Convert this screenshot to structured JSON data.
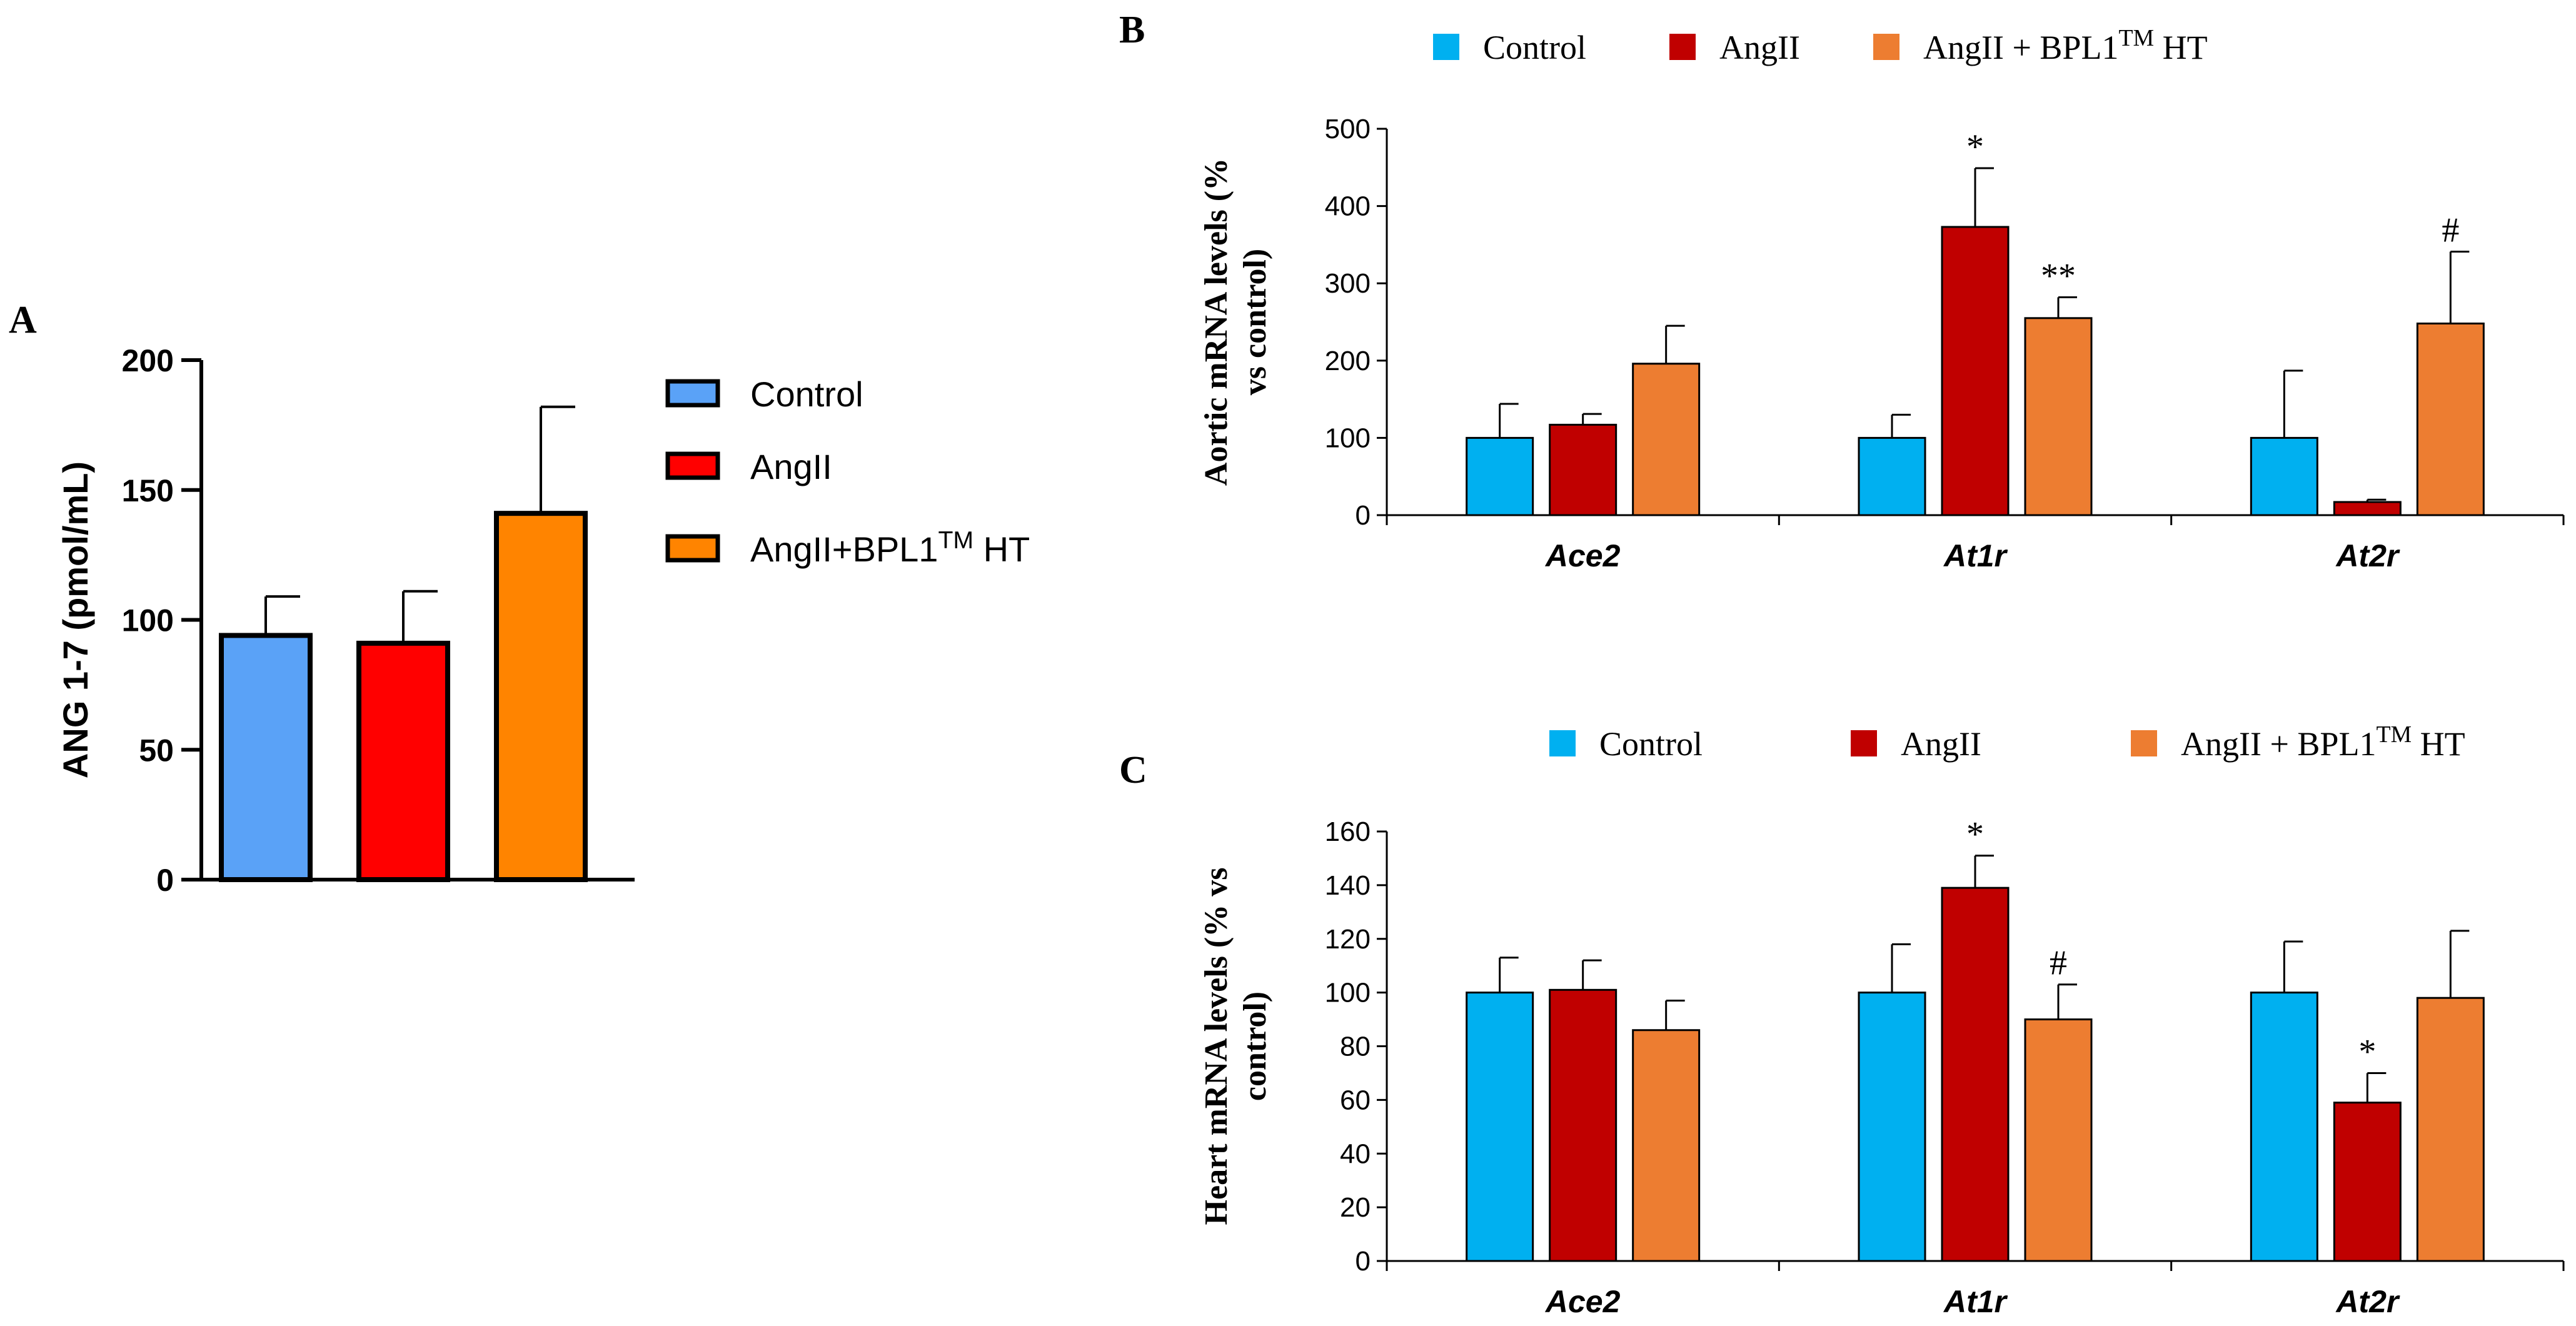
{
  "chart_data": [
    {
      "panel": "A",
      "type": "bar",
      "ylabel": "ANG 1-7 (pmol/mL)",
      "ylim": [
        0,
        200
      ],
      "yticks": [
        0,
        50,
        100,
        150,
        200
      ],
      "series": [
        {
          "name": "Control",
          "legend": "Control",
          "legend_sup": "",
          "legend_suffix": "",
          "value": 94,
          "error": 15,
          "color": "#5aa2f7"
        },
        {
          "name": "AngII",
          "legend": "AngII",
          "legend_sup": "",
          "legend_suffix": "",
          "value": 91,
          "error": 20,
          "color": "#ff0000"
        },
        {
          "name": "AngII+BPL1TM HT",
          "legend": "AngII+BPL1",
          "legend_sup": "TM",
          "legend_suffix": " HT",
          "value": 141,
          "error": 41,
          "color": "#ff8400"
        }
      ]
    },
    {
      "panel": "B",
      "type": "bar",
      "ylabel_lines": [
        "Aortic mRNA levels (%",
        "vs control)"
      ],
      "ylim": [
        0,
        500
      ],
      "yticks": [
        0,
        100,
        200,
        300,
        400,
        500
      ],
      "categories": [
        "Ace2",
        "At1r",
        "At2r"
      ],
      "legend": [
        {
          "label": "Control",
          "sup": "",
          "suffix": ""
        },
        {
          "label": "AngII",
          "sup": "",
          "suffix": ""
        },
        {
          "label": "AngII + BPL1",
          "sup": "TM",
          "suffix": " HT"
        }
      ],
      "series": [
        {
          "name": "Control",
          "color": "#00b0f0",
          "values": [
            100,
            100,
            100
          ],
          "errors": [
            44,
            30,
            87
          ],
          "annotations": [
            "",
            "",
            ""
          ]
        },
        {
          "name": "AngII",
          "color": "#c00000",
          "values": [
            117,
            373,
            17
          ],
          "errors": [
            14,
            76,
            3
          ],
          "annotations": [
            "",
            "*",
            ""
          ]
        },
        {
          "name": "AngII + BPL1TM HT",
          "color": "#ed7d31",
          "values": [
            196,
            255,
            248
          ],
          "errors": [
            49,
            27,
            93
          ],
          "annotations": [
            "",
            "**",
            "#"
          ]
        }
      ]
    },
    {
      "panel": "C",
      "type": "bar",
      "ylabel_lines": [
        "Heart mRNA levels (% vs",
        "control)"
      ],
      "ylim": [
        0,
        160
      ],
      "yticks": [
        0,
        20,
        40,
        60,
        80,
        100,
        120,
        140,
        160
      ],
      "categories": [
        "Ace2",
        "At1r",
        "At2r"
      ],
      "legend": [
        {
          "label": "Control",
          "sup": "",
          "suffix": ""
        },
        {
          "label": "AngII",
          "sup": "",
          "suffix": ""
        },
        {
          "label": "AngII + BPL1",
          "sup": "TM",
          "suffix": " HT"
        }
      ],
      "series": [
        {
          "name": "Control",
          "color": "#00b0f0",
          "values": [
            100,
            100,
            100
          ],
          "errors": [
            13,
            18,
            19
          ],
          "annotations": [
            "",
            "",
            ""
          ]
        },
        {
          "name": "AngII",
          "color": "#c00000",
          "values": [
            101,
            139,
            59
          ],
          "errors": [
            11,
            12,
            11
          ],
          "annotations": [
            "",
            "*",
            "*"
          ]
        },
        {
          "name": "AngII + BPL1TM HT",
          "color": "#ed7d31",
          "values": [
            86,
            90,
            98
          ],
          "errors": [
            11,
            13,
            25
          ],
          "annotations": [
            "",
            "#",
            ""
          ]
        }
      ]
    }
  ],
  "panel_labels": {
    "a": "A",
    "b": "B",
    "c": "C"
  }
}
